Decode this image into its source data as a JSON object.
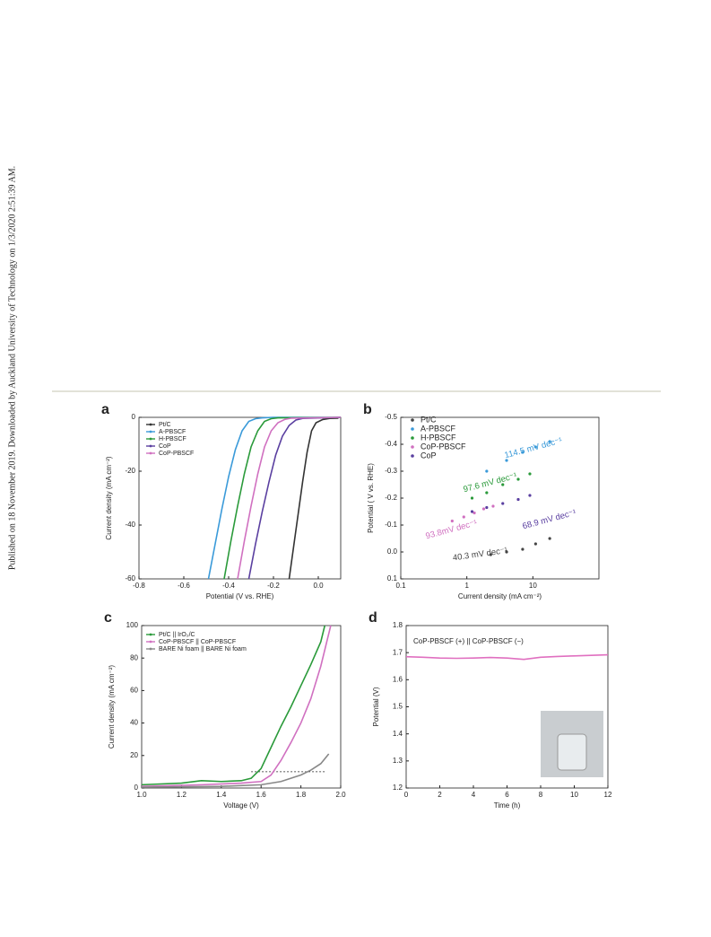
{
  "sidebar": "Published on 18 November 2019. Downloaded by Auckland University of Technology on 1/3/2020 2:51:39 AM.",
  "chart_data": [
    {
      "type": "line",
      "panel": "a",
      "xlabel": "Potential (V vs. RHE)",
      "ylabel": "Current density (mA cm⁻²)",
      "xlim": [
        -0.8,
        0.1
      ],
      "xticks": [
        -0.8,
        -0.6,
        -0.4,
        -0.2,
        {
          "value": 0,
          "label": "0.0"
        }
      ],
      "ylim": [
        -60,
        0
      ],
      "yticks": [
        -60,
        -40,
        -20,
        0
      ],
      "series": [
        {
          "name": "Pt/C",
          "color": "#333333",
          "x": [
            -0.13,
            -0.11,
            -0.09,
            -0.07,
            -0.05,
            -0.03,
            -0.01,
            0.02,
            0.05,
            0.09
          ],
          "values": [
            -60,
            -48,
            -36,
            -24,
            -13,
            -5,
            -2,
            -0.8,
            -0.4,
            -0.3
          ]
        },
        {
          "name": "A-PBSCF",
          "color": "#3a9ad9",
          "x": [
            -0.49,
            -0.46,
            -0.43,
            -0.4,
            -0.37,
            -0.34,
            -0.31,
            -0.28,
            -0.25,
            -0.2,
            0.1
          ],
          "values": [
            -60,
            -47,
            -34,
            -22,
            -12,
            -5,
            -1.5,
            -0.5,
            -0.2,
            0,
            0
          ]
        },
        {
          "name": "H-PBSCF",
          "color": "#2a9a3a",
          "x": [
            -0.42,
            -0.39,
            -0.36,
            -0.33,
            -0.3,
            -0.27,
            -0.24,
            -0.21,
            -0.18,
            0.1
          ],
          "values": [
            -60,
            -46,
            -33,
            -21,
            -11,
            -5,
            -1.5,
            -0.5,
            -0.2,
            0
          ]
        },
        {
          "name": "CoP",
          "color": "#5a3fa0",
          "x": [
            -0.31,
            -0.28,
            -0.25,
            -0.22,
            -0.19,
            -0.16,
            -0.13,
            -0.1,
            -0.07,
            0.1
          ],
          "values": [
            -60,
            -47,
            -35,
            -24,
            -14,
            -7,
            -3,
            -1,
            -0.4,
            0
          ]
        },
        {
          "name": "CoP-PBSCF",
          "color": "#d070c0",
          "x": [
            -0.36,
            -0.33,
            -0.3,
            -0.27,
            -0.24,
            -0.21,
            -0.18,
            -0.15,
            -0.12,
            0.1
          ],
          "values": [
            -60,
            -46,
            -33,
            -21,
            -11,
            -5,
            -2,
            -0.8,
            -0.3,
            0
          ]
        }
      ]
    },
    {
      "type": "scatter",
      "panel": "b",
      "xlabel": "Current density (mA cm⁻²)",
      "ylabel": "Potential ( V vs. RHE)",
      "xscale": "log",
      "xlim": [
        0.1,
        100
      ],
      "xticks": [
        0.1,
        1,
        10
      ],
      "ylim": [
        0.1,
        -0.5
      ],
      "yticks": [
        -0.5,
        -0.4,
        -0.3,
        -0.2,
        -0.1,
        {
          "value": 0,
          "label": "0.0"
        },
        0.1
      ],
      "series": [
        {
          "name": "Pt/C",
          "color": "#444444",
          "annotation": "40.3 mV dec⁻¹",
          "x": [
            2.3,
            4,
            7,
            11,
            18
          ],
          "values": [
            0.01,
            0,
            -0.01,
            -0.03,
            -0.05
          ]
        },
        {
          "name": "A-PBSCF",
          "color": "#3a9ad9",
          "annotation": "114.5 mV dec⁻¹",
          "x": [
            2,
            4,
            7,
            11,
            18
          ],
          "values": [
            -0.3,
            -0.34,
            -0.37,
            -0.39,
            -0.41
          ]
        },
        {
          "name": "H-PBSCF",
          "color": "#2a9a3a",
          "annotation": "97.6 mV dec⁻¹",
          "x": [
            1.2,
            2,
            3.5,
            6,
            9
          ],
          "values": [
            -0.2,
            -0.22,
            -0.25,
            -0.27,
            -0.29
          ]
        },
        {
          "name": "CoP-PBSCF",
          "color": "#d070c0",
          "annotation": "93.8mV dec⁻¹",
          "x": [
            0.6,
            0.9,
            1.3,
            1.8,
            2.5
          ],
          "values": [
            -0.115,
            -0.13,
            -0.145,
            -0.16,
            -0.17
          ]
        },
        {
          "name": "CoP",
          "color": "#5a3fa0",
          "annotation": "68.9 mV dec⁻¹",
          "x": [
            1.2,
            2,
            3.5,
            6,
            9
          ],
          "values": [
            -0.15,
            -0.165,
            -0.18,
            -0.195,
            -0.21
          ]
        }
      ]
    },
    {
      "type": "line",
      "panel": "c",
      "xlabel": "Voltage (V)",
      "ylabel": "Current density (mA cm⁻²)",
      "xlim": [
        1.0,
        2.0
      ],
      "xticks": [
        {
          "value": 1,
          "label": "1.0"
        },
        1.2,
        1.4,
        1.6,
        1.8,
        {
          "value": 2,
          "label": "2.0"
        }
      ],
      "ylim": [
        0,
        100
      ],
      "yticks": [
        0,
        20,
        40,
        60,
        80,
        100
      ],
      "reference": {
        "y": 10,
        "x": [
          1.55,
          1.92
        ]
      },
      "series": [
        {
          "name": "Pt/C || IrO₂/C",
          "color": "#2a9a3a",
          "x": [
            1.0,
            1.2,
            1.3,
            1.4,
            1.5,
            1.55,
            1.6,
            1.65,
            1.7,
            1.75,
            1.8,
            1.85,
            1.9,
            1.92
          ],
          "values": [
            2,
            3,
            4.5,
            4,
            4.5,
            6,
            12,
            25,
            38,
            50,
            63,
            76,
            90,
            100
          ]
        },
        {
          "name": "CoP-PBSCF || CoP-PBSCF",
          "color": "#d070c0",
          "x": [
            1.0,
            1.3,
            1.5,
            1.6,
            1.65,
            1.7,
            1.75,
            1.8,
            1.85,
            1.9,
            1.93,
            1.95
          ],
          "values": [
            1,
            2,
            3,
            4,
            8,
            17,
            28,
            40,
            55,
            75,
            90,
            100
          ]
        },
        {
          "name": "BARE Ni foam || BARE Ni foam",
          "color": "#888888",
          "x": [
            1.0,
            1.4,
            1.6,
            1.7,
            1.8,
            1.85,
            1.9,
            1.94
          ],
          "values": [
            0.5,
            1,
            2,
            4,
            8,
            11,
            15,
            21
          ]
        }
      ]
    },
    {
      "type": "line",
      "panel": "d",
      "title": "CoP-PBSCF (+) || CoP-PBSCF (−)",
      "xlabel": "Time (h)",
      "ylabel": "Potential (V)",
      "xlim": [
        0,
        12
      ],
      "xticks": [
        0,
        2,
        4,
        6,
        8,
        10,
        12
      ],
      "ylim": [
        1.2,
        1.8
      ],
      "yticks": [
        1.2,
        1.3,
        1.4,
        1.5,
        1.6,
        1.7,
        1.8
      ],
      "series": [
        {
          "name": "CoP-PBSCF",
          "color": "#e070c0",
          "x": [
            0,
            1,
            2,
            3,
            4,
            5,
            6,
            7,
            8,
            9,
            10,
            11,
            12
          ],
          "values": [
            1.685,
            1.683,
            1.68,
            1.679,
            1.68,
            1.682,
            1.68,
            1.675,
            1.683,
            1.686,
            1.688,
            1.69,
            1.692
          ]
        }
      ]
    }
  ]
}
